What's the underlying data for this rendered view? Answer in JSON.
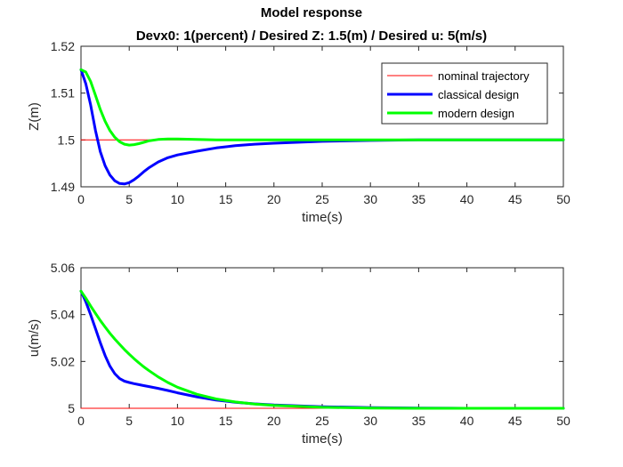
{
  "figure": {
    "title": "Model response",
    "subtitle": "Devx0: 1(percent) / Desired Z: 1.5(m) / Desired u: 5(m/s)"
  },
  "colors": {
    "nominal": "#ff0000",
    "classical": "#0000ff",
    "modern": "#00ff00",
    "axis": "#262626"
  },
  "chart_data": [
    {
      "type": "line",
      "xlabel": "time(s)",
      "ylabel": "Z(m)",
      "xlim": [
        0,
        50
      ],
      "ylim": [
        1.49,
        1.52
      ],
      "xticks": [
        "0",
        "5",
        "10",
        "15",
        "20",
        "25",
        "30",
        "35",
        "40",
        "45",
        "50"
      ],
      "yticks": [
        "1.49",
        "1.5",
        "1.51",
        "1.52"
      ],
      "grid": false,
      "legend": "top-right",
      "x": [
        0,
        0.5,
        1,
        1.5,
        2,
        2.5,
        3,
        3.5,
        4,
        4.5,
        5,
        5.5,
        6,
        6.5,
        7,
        8,
        9,
        10,
        12,
        14,
        16,
        18,
        20,
        25,
        30,
        35,
        40,
        45,
        50
      ],
      "series": [
        {
          "name": "nominal trajectory",
          "values": [
            1.5,
            1.5,
            1.5,
            1.5,
            1.5,
            1.5,
            1.5,
            1.5,
            1.5,
            1.5,
            1.5,
            1.5,
            1.5,
            1.5,
            1.5,
            1.5,
            1.5,
            1.5,
            1.5,
            1.5,
            1.5,
            1.5,
            1.5,
            1.5,
            1.5,
            1.5,
            1.5,
            1.5,
            1.5
          ]
        },
        {
          "name": "classical design",
          "values": [
            1.515,
            1.512,
            1.5075,
            1.502,
            1.4975,
            1.4945,
            1.4925,
            1.4913,
            1.4907,
            1.4906,
            1.4909,
            1.4915,
            1.4923,
            1.4932,
            1.494,
            1.4953,
            1.4962,
            1.4968,
            1.4976,
            1.4983,
            1.4988,
            1.4991,
            1.4993,
            1.4997,
            1.4999,
            1.5,
            1.5,
            1.5,
            1.5
          ]
        },
        {
          "name": "modern design",
          "values": [
            1.515,
            1.5145,
            1.5125,
            1.5095,
            1.5065,
            1.504,
            1.502,
            1.5006,
            1.4996,
            1.4991,
            1.4989,
            1.499,
            1.4992,
            1.4995,
            1.4998,
            1.5001,
            1.5002,
            1.5002,
            1.5001,
            1.5,
            1.5,
            1.5,
            1.5,
            1.5,
            1.5,
            1.5,
            1.5,
            1.5,
            1.5
          ]
        }
      ]
    },
    {
      "type": "line",
      "xlabel": "time(s)",
      "ylabel": "u(m/s)",
      "xlim": [
        0,
        50
      ],
      "ylim": [
        5,
        5.06
      ],
      "xticks": [
        "0",
        "5",
        "10",
        "15",
        "20",
        "25",
        "30",
        "35",
        "40",
        "45",
        "50"
      ],
      "yticks": [
        "5",
        "5.02",
        "5.04",
        "5.06"
      ],
      "grid": false,
      "x": [
        0,
        0.5,
        1,
        1.5,
        2,
        2.5,
        3,
        3.5,
        4,
        4.5,
        5,
        5.5,
        6,
        6.5,
        7,
        8,
        9,
        10,
        12,
        14,
        16,
        18,
        20,
        25,
        30,
        35,
        40,
        45,
        50
      ],
      "series": [
        {
          "name": "nominal trajectory",
          "values": [
            5,
            5,
            5,
            5,
            5,
            5,
            5,
            5,
            5,
            5,
            5,
            5,
            5,
            5,
            5,
            5,
            5,
            5,
            5,
            5,
            5,
            5,
            5,
            5,
            5,
            5,
            5,
            5,
            5
          ]
        },
        {
          "name": "classical design",
          "values": [
            5.05,
            5.0455,
            5.04,
            5.034,
            5.028,
            5.0225,
            5.018,
            5.0148,
            5.0127,
            5.0116,
            5.011,
            5.0105,
            5.0101,
            5.0097,
            5.0093,
            5.0085,
            5.0076,
            5.0066,
            5.0049,
            5.0035,
            5.0026,
            5.0019,
            5.0014,
            5.0007,
            5.0003,
            5.0001,
            5.0,
            5.0,
            5.0
          ]
        },
        {
          "name": "modern design",
          "values": [
            5.05,
            5.047,
            5.0437,
            5.0405,
            5.0375,
            5.0347,
            5.032,
            5.0296,
            5.0273,
            5.0251,
            5.0231,
            5.0212,
            5.0194,
            5.0177,
            5.0162,
            5.0134,
            5.011,
            5.009,
            5.006,
            5.004,
            5.0027,
            5.0018,
            5.0012,
            5.0004,
            5.0001,
            5.0,
            5.0,
            5.0,
            5.0
          ]
        }
      ]
    }
  ]
}
